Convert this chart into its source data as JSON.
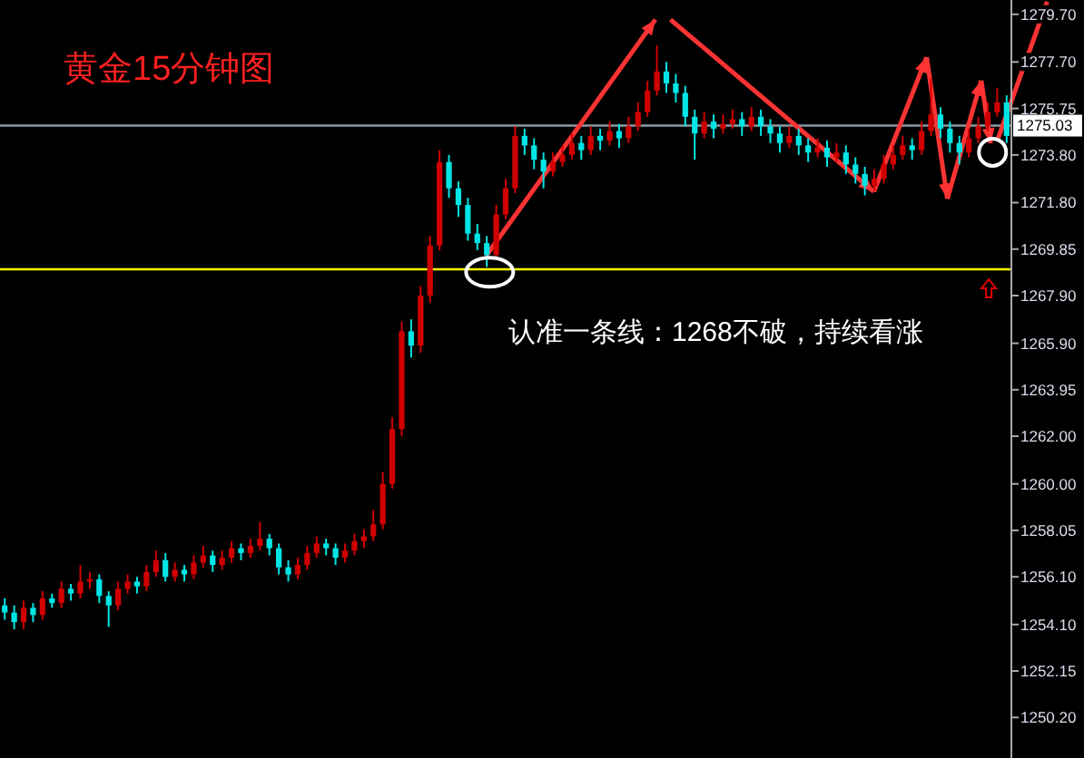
{
  "chart_data": {
    "type": "candlestick",
    "title": "黄金15分钟图",
    "annotations": [
      "认准一条线：1268不破，持续看涨"
    ],
    "categories": [
      null,
      null,
      null,
      null,
      null,
      null,
      null,
      null,
      null,
      null,
      null,
      null,
      null,
      null,
      null,
      null,
      null,
      null,
      null,
      null,
      null,
      null,
      null,
      null,
      null,
      null,
      null,
      null,
      null,
      null,
      null,
      null,
      null,
      null,
      null,
      null,
      null,
      null,
      null,
      null,
      null,
      null,
      null,
      null,
      null,
      null,
      null,
      null,
      null,
      null,
      null,
      null,
      null,
      null,
      null,
      null,
      null,
      null,
      null,
      null,
      null,
      null,
      null,
      null,
      null,
      null,
      null,
      null,
      null,
      null,
      null,
      null,
      null,
      null,
      null,
      null,
      null,
      null,
      null,
      null,
      null,
      null,
      null,
      null,
      null,
      null,
      null,
      null,
      null,
      null,
      null,
      null,
      null,
      null,
      null,
      null,
      null,
      null,
      null,
      null,
      null,
      null,
      null,
      null,
      null,
      null,
      null
    ],
    "ohlc": [
      [
        1254.9,
        1255.2,
        1254.3,
        1254.6
      ],
      [
        1254.6,
        1254.9,
        1253.9,
        1254.2
      ],
      [
        1254.2,
        1255.1,
        1253.9,
        1254.8
      ],
      [
        1254.8,
        1255.0,
        1254.2,
        1254.5
      ],
      [
        1254.5,
        1255.5,
        1254.3,
        1255.2
      ],
      [
        1255.2,
        1255.4,
        1254.8,
        1255.0
      ],
      [
        1255.0,
        1255.9,
        1254.8,
        1255.6
      ],
      [
        1255.6,
        1255.8,
        1255.1,
        1255.4
      ],
      [
        1255.4,
        1256.6,
        1255.2,
        1255.9
      ],
      [
        1255.9,
        1256.3,
        1255.6,
        1256.0
      ],
      [
        1256.0,
        1256.2,
        1255.0,
        1255.3
      ],
      [
        1255.3,
        1255.5,
        1254.0,
        1254.9
      ],
      [
        1254.9,
        1255.9,
        1254.7,
        1255.6
      ],
      [
        1255.6,
        1256.2,
        1255.4,
        1255.9
      ],
      [
        1255.9,
        1256.1,
        1255.4,
        1255.7
      ],
      [
        1255.7,
        1256.6,
        1255.5,
        1256.3
      ],
      [
        1256.3,
        1257.2,
        1256.1,
        1256.8
      ],
      [
        1256.8,
        1257.1,
        1255.9,
        1256.1
      ],
      [
        1256.1,
        1256.7,
        1255.9,
        1256.4
      ],
      [
        1256.4,
        1256.6,
        1255.9,
        1256.2
      ],
      [
        1256.2,
        1257.0,
        1256.0,
        1256.7
      ],
      [
        1256.7,
        1257.4,
        1256.5,
        1257.0
      ],
      [
        1257.0,
        1257.2,
        1256.3,
        1256.6
      ],
      [
        1256.6,
        1257.2,
        1256.4,
        1256.9
      ],
      [
        1256.9,
        1257.6,
        1256.7,
        1257.3
      ],
      [
        1257.3,
        1257.5,
        1256.8,
        1257.1
      ],
      [
        1257.1,
        1257.7,
        1256.9,
        1257.4
      ],
      [
        1257.4,
        1258.4,
        1257.2,
        1257.7
      ],
      [
        1257.7,
        1257.9,
        1257.0,
        1257.3
      ],
      [
        1257.3,
        1257.5,
        1256.2,
        1256.5
      ],
      [
        1256.5,
        1256.8,
        1255.9,
        1256.2
      ],
      [
        1256.2,
        1256.9,
        1256.0,
        1256.6
      ],
      [
        1256.6,
        1257.4,
        1256.4,
        1257.1
      ],
      [
        1257.1,
        1257.8,
        1256.9,
        1257.5
      ],
      [
        1257.5,
        1257.7,
        1257.0,
        1257.3
      ],
      [
        1257.3,
        1257.5,
        1256.6,
        1256.9
      ],
      [
        1256.9,
        1257.5,
        1256.7,
        1257.2
      ],
      [
        1257.2,
        1257.9,
        1257.0,
        1257.6
      ],
      [
        1257.6,
        1258.1,
        1257.3,
        1257.8
      ],
      [
        1257.8,
        1258.9,
        1257.6,
        1258.3
      ],
      [
        1258.3,
        1260.5,
        1258.1,
        1260.0
      ],
      [
        1260.0,
        1262.8,
        1259.8,
        1262.3
      ],
      [
        1262.3,
        1266.8,
        1262.0,
        1266.4
      ],
      [
        1266.4,
        1266.9,
        1265.3,
        1265.8
      ],
      [
        1265.8,
        1268.3,
        1265.5,
        1267.9
      ],
      [
        1267.9,
        1270.4,
        1267.6,
        1270.0
      ],
      [
        1270.0,
        1274.0,
        1269.8,
        1273.5
      ],
      [
        1273.5,
        1273.8,
        1272.0,
        1272.4
      ],
      [
        1272.4,
        1272.7,
        1271.2,
        1271.7
      ],
      [
        1271.7,
        1272.0,
        1270.2,
        1270.5
      ],
      [
        1270.5,
        1270.9,
        1269.8,
        1270.1
      ],
      [
        1270.1,
        1270.4,
        1269.1,
        1269.6
      ],
      [
        1269.6,
        1271.7,
        1269.4,
        1271.3
      ],
      [
        1271.3,
        1272.8,
        1271.1,
        1272.4
      ],
      [
        1272.4,
        1275.0,
        1272.2,
        1274.6
      ],
      [
        1274.6,
        1274.9,
        1273.8,
        1274.2
      ],
      [
        1274.2,
        1274.5,
        1273.2,
        1273.6
      ],
      [
        1273.6,
        1273.9,
        1272.4,
        1273.1
      ],
      [
        1273.1,
        1273.9,
        1272.9,
        1273.5
      ],
      [
        1273.5,
        1274.2,
        1273.3,
        1273.8
      ],
      [
        1273.8,
        1274.7,
        1273.6,
        1274.3
      ],
      [
        1274.3,
        1274.6,
        1273.6,
        1274.0
      ],
      [
        1274.0,
        1275.0,
        1273.8,
        1274.6
      ],
      [
        1274.6,
        1274.9,
        1274.0,
        1274.4
      ],
      [
        1274.4,
        1275.2,
        1274.2,
        1274.8
      ],
      [
        1274.8,
        1275.1,
        1274.1,
        1274.5
      ],
      [
        1274.5,
        1275.4,
        1274.3,
        1275.0
      ],
      [
        1275.0,
        1276.0,
        1274.8,
        1275.6
      ],
      [
        1275.6,
        1276.9,
        1275.4,
        1276.5
      ],
      [
        1276.5,
        1278.4,
        1276.3,
        1277.3
      ],
      [
        1277.3,
        1277.7,
        1276.4,
        1276.8
      ],
      [
        1276.8,
        1277.2,
        1276.0,
        1276.4
      ],
      [
        1276.4,
        1276.7,
        1275.0,
        1275.4
      ],
      [
        1275.4,
        1275.7,
        1273.6,
        1274.7
      ],
      [
        1274.7,
        1275.6,
        1274.5,
        1275.2
      ],
      [
        1275.2,
        1275.5,
        1274.5,
        1274.9
      ],
      [
        1274.9,
        1275.5,
        1274.7,
        1275.1
      ],
      [
        1275.1,
        1275.7,
        1274.9,
        1275.3
      ],
      [
        1275.3,
        1275.6,
        1274.6,
        1275.0
      ],
      [
        1275.0,
        1275.8,
        1274.8,
        1275.4
      ],
      [
        1275.4,
        1275.7,
        1274.6,
        1275.0
      ],
      [
        1275.0,
        1275.3,
        1274.3,
        1274.7
      ],
      [
        1274.7,
        1275.0,
        1273.9,
        1274.3
      ],
      [
        1274.3,
        1275.0,
        1274.1,
        1274.6
      ],
      [
        1274.6,
        1274.9,
        1273.8,
        1274.2
      ],
      [
        1274.2,
        1274.5,
        1273.5,
        1273.9
      ],
      [
        1273.9,
        1274.5,
        1273.7,
        1274.1
      ],
      [
        1274.1,
        1274.4,
        1273.3,
        1273.7
      ],
      [
        1273.7,
        1274.3,
        1273.5,
        1273.9
      ],
      [
        1273.9,
        1274.2,
        1273.0,
        1273.4
      ],
      [
        1273.4,
        1273.7,
        1272.6,
        1273.0
      ],
      [
        1273.0,
        1273.3,
        1272.1,
        1272.5
      ],
      [
        1272.5,
        1273.2,
        1272.3,
        1272.8
      ],
      [
        1272.8,
        1273.8,
        1272.6,
        1273.4
      ],
      [
        1273.4,
        1274.2,
        1273.2,
        1273.8
      ],
      [
        1273.8,
        1274.6,
        1273.6,
        1274.2
      ],
      [
        1274.2,
        1274.5,
        1273.6,
        1274.0
      ],
      [
        1274.0,
        1275.2,
        1273.8,
        1274.8
      ],
      [
        1274.8,
        1277.0,
        1274.6,
        1275.5
      ],
      [
        1275.5,
        1275.8,
        1274.5,
        1274.9
      ],
      [
        1274.9,
        1275.2,
        1273.9,
        1274.3
      ],
      [
        1274.3,
        1274.6,
        1273.4,
        1273.9
      ],
      [
        1273.9,
        1274.9,
        1273.7,
        1274.5
      ],
      [
        1274.5,
        1275.4,
        1274.3,
        1275.0
      ],
      [
        1275.0,
        1276.0,
        1274.8,
        1275.6
      ],
      [
        1275.6,
        1276.6,
        1275.4,
        1276.0
      ],
      [
        1276.0,
        1276.3,
        1274.3,
        1274.6
      ]
    ],
    "colors": [
      "#00e5e5",
      "#00e5e5",
      "#d00000",
      "#00e5e5",
      "#d00000",
      "#00e5e5",
      "#d00000",
      "#00e5e5",
      "#d00000",
      "#d00000",
      "#00e5e5",
      "#00e5e5",
      "#d00000",
      "#d00000",
      "#00e5e5",
      "#d00000",
      "#d00000",
      "#00e5e5",
      "#d00000",
      "#00e5e5",
      "#d00000",
      "#d00000",
      "#00e5e5",
      "#d00000",
      "#d00000",
      "#00e5e5",
      "#d00000",
      "#d00000",
      "#00e5e5",
      "#00e5e5",
      "#00e5e5",
      "#d00000",
      "#d00000",
      "#d00000",
      "#00e5e5",
      "#00e5e5",
      "#d00000",
      "#d00000",
      "#d00000",
      "#d00000",
      "#d00000",
      "#d00000",
      "#d00000",
      "#00e5e5",
      "#d00000",
      "#d00000",
      "#d00000",
      "#00e5e5",
      "#00e5e5",
      "#00e5e5",
      "#00e5e5",
      "#00e5e5",
      "#d00000",
      "#d00000",
      "#d00000",
      "#00e5e5",
      "#00e5e5",
      "#00e5e5",
      "#d00000",
      "#d00000",
      "#d00000",
      "#00e5e5",
      "#d00000",
      "#00e5e5",
      "#d00000",
      "#00e5e5",
      "#d00000",
      "#d00000",
      "#d00000",
      "#d00000",
      "#00e5e5",
      "#00e5e5",
      "#00e5e5",
      "#00e5e5",
      "#d00000",
      "#00e5e5",
      "#d00000",
      "#d00000",
      "#00e5e5",
      "#d00000",
      "#00e5e5",
      "#00e5e5",
      "#00e5e5",
      "#d00000",
      "#00e5e5",
      "#00e5e5",
      "#d00000",
      "#00e5e5",
      "#d00000",
      "#00e5e5",
      "#00e5e5",
      "#00e5e5",
      "#d00000",
      "#d00000",
      "#d00000",
      "#d00000",
      "#00e5e5",
      "#d00000",
      "#d00000",
      "#00e5e5",
      "#00e5e5",
      "#00e5e5",
      "#d00000",
      "#d00000",
      "#d00000",
      "#d00000",
      "#00e5e5"
    ],
    "ylim": [
      1248.5,
      1280.3
    ],
    "yticks": [
      {
        "value": 1279.7,
        "label": "1279.70"
      },
      {
        "value": 1277.7,
        "label": "1277.70"
      },
      {
        "value": 1275.75,
        "label": "1275.75"
      },
      {
        "value": 1273.8,
        "label": "1273.80"
      },
      {
        "value": 1271.8,
        "label": "1271.80"
      },
      {
        "value": 1269.85,
        "label": "1269.85"
      },
      {
        "value": 1267.9,
        "label": "1267.90"
      },
      {
        "value": 1265.9,
        "label": "1265.90"
      },
      {
        "value": 1263.95,
        "label": "1263.95"
      },
      {
        "value": 1262.0,
        "label": "1262.00"
      },
      {
        "value": 1260.0,
        "label": "1260.00"
      },
      {
        "value": 1258.05,
        "label": "1258.05"
      },
      {
        "value": 1256.1,
        "label": "1256.10"
      },
      {
        "value": 1254.1,
        "label": "1254.10"
      },
      {
        "value": 1252.15,
        "label": "1252.15"
      },
      {
        "value": 1250.2,
        "label": "1250.20"
      }
    ],
    "tick_labels": "y",
    "ref_lines": [
      {
        "axis": "y",
        "value": 1275.03,
        "label": "1275.03",
        "color": "#8c9aa6"
      },
      {
        "axis": "y",
        "value": 1269.0,
        "color": "#ffff00"
      }
    ]
  }
}
